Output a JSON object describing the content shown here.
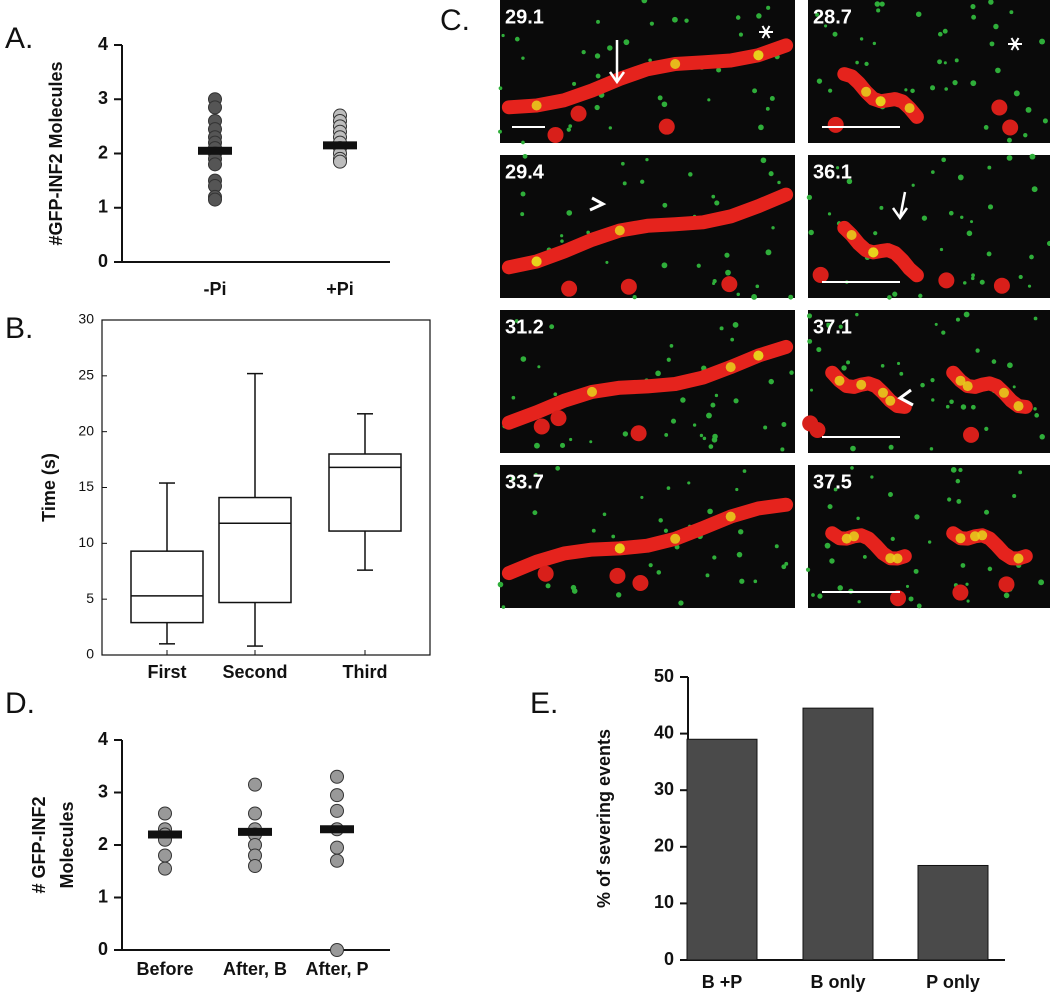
{
  "chart_data": [
    {
      "type": "strip",
      "panel": "A.",
      "ylabel": [
        "#GFP-INF2 Molecules"
      ],
      "categories": [
        "-Pi",
        "+Pi"
      ],
      "points": [
        [
          3.0,
          2.85,
          2.6,
          2.45,
          2.3,
          2.2,
          2.1,
          2.0,
          1.9,
          1.8,
          1.5,
          1.4,
          1.2,
          1.15
        ],
        [
          2.7,
          2.6,
          2.5,
          2.4,
          2.3,
          2.2,
          2.1,
          2.0,
          1.9,
          1.85
        ]
      ],
      "means": [
        2.05,
        2.15
      ],
      "colors": [
        "#555555",
        "#bdbdbd"
      ],
      "ylim": [
        0,
        4
      ],
      "yticks": [
        0,
        1,
        2,
        3,
        4
      ]
    },
    {
      "type": "box",
      "panel": "B.",
      "ylabel": [
        "Time (s)"
      ],
      "categories": [
        "First",
        "Second",
        "Third"
      ],
      "min": [
        1.0,
        0.8,
        7.6
      ],
      "q1": [
        2.9,
        4.7,
        11.1
      ],
      "median": [
        5.3,
        11.8,
        16.8
      ],
      "q3": [
        9.3,
        14.1,
        18.0
      ],
      "max": [
        15.4,
        25.2,
        21.6
      ],
      "ylim": [
        0,
        30
      ],
      "yticks": [
        0,
        5,
        10,
        15,
        20,
        25,
        30
      ]
    },
    {
      "type": "strip",
      "panel": "D.",
      "ylabel": [
        "# GFP-INF2",
        "Molecules"
      ],
      "categories": [
        "Before",
        "After, B",
        "After, P"
      ],
      "points": [
        [
          2.6,
          2.3,
          2.2,
          2.1,
          1.8,
          1.55
        ],
        [
          3.15,
          2.6,
          2.3,
          2.2,
          2.0,
          1.8,
          1.6
        ],
        [
          3.3,
          2.95,
          2.65,
          2.3,
          1.95,
          1.7,
          0.0
        ]
      ],
      "means": [
        2.2,
        2.25,
        2.3
      ],
      "colors": [
        "#999999",
        "#999999",
        "#999999"
      ],
      "ylim": [
        0,
        4
      ],
      "yticks": [
        0,
        1,
        2,
        3,
        4
      ]
    },
    {
      "type": "bar",
      "panel": "E.",
      "ylabel": [
        "% of severing events"
      ],
      "categories": [
        "B +P",
        "B only",
        "P only"
      ],
      "values": [
        39,
        44.5,
        16.7
      ],
      "color": "#4a4a4a",
      "ylim": [
        0,
        50
      ],
      "yticks": [
        0,
        10,
        20,
        30,
        40,
        50
      ]
    }
  ],
  "micrographs": {
    "panel": "C.",
    "timestamps": [
      "29.1",
      "29.4",
      "31.2",
      "33.7",
      "28.7",
      "36.1",
      "37.1",
      "37.5"
    ]
  }
}
